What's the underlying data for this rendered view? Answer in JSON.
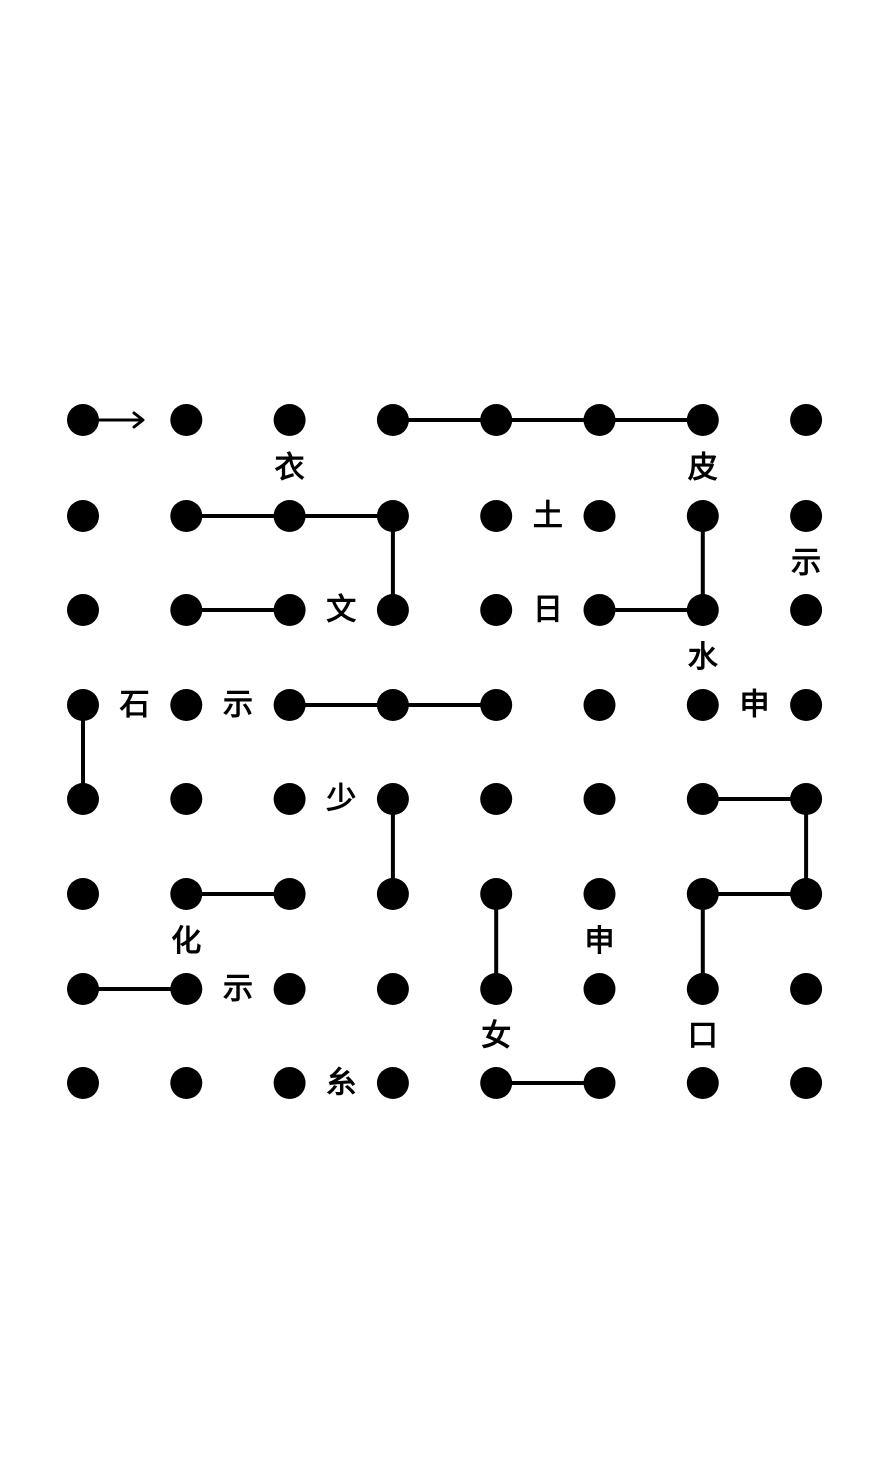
{
  "puzzle": {
    "type": "dot-grid maze",
    "columns": 8,
    "rows": 8,
    "colors": {
      "background": "#ffffff",
      "ink": "#000000"
    },
    "start_marker": "arrow-right",
    "segments": [
      {
        "from": [
          3,
          0
        ],
        "to": [
          6,
          0
        ]
      },
      {
        "from": [
          1,
          1
        ],
        "to": [
          3,
          1
        ]
      },
      {
        "from": [
          3,
          1
        ],
        "to": [
          3,
          2
        ]
      },
      {
        "from": [
          6,
          1
        ],
        "to": [
          6,
          2
        ]
      },
      {
        "from": [
          1,
          2
        ],
        "to": [
          2,
          2
        ]
      },
      {
        "from": [
          5,
          2
        ],
        "to": [
          6,
          2
        ]
      },
      {
        "from": [
          2,
          3
        ],
        "to": [
          4,
          3
        ]
      },
      {
        "from": [
          0,
          3
        ],
        "to": [
          0,
          4
        ]
      },
      {
        "from": [
          6,
          4
        ],
        "to": [
          7,
          4
        ]
      },
      {
        "from": [
          7,
          4
        ],
        "to": [
          7,
          5
        ]
      },
      {
        "from": [
          3,
          4
        ],
        "to": [
          3,
          5
        ]
      },
      {
        "from": [
          1,
          5
        ],
        "to": [
          2,
          5
        ]
      },
      {
        "from": [
          6,
          5
        ],
        "to": [
          7,
          5
        ]
      },
      {
        "from": [
          4,
          5
        ],
        "to": [
          4,
          6
        ]
      },
      {
        "from": [
          6,
          5
        ],
        "to": [
          6,
          6
        ]
      },
      {
        "from": [
          0,
          6
        ],
        "to": [
          1,
          6
        ]
      },
      {
        "from": [
          4,
          7
        ],
        "to": [
          5,
          7
        ]
      }
    ],
    "glyphs": [
      {
        "text": "衣",
        "cell": [
          2,
          0.5
        ]
      },
      {
        "text": "皮",
        "cell": [
          6,
          0.5
        ]
      },
      {
        "text": "土",
        "cell": [
          4.5,
          1
        ]
      },
      {
        "text": "示",
        "cell": [
          7,
          1.5
        ]
      },
      {
        "text": "文",
        "cell": [
          2.5,
          2
        ]
      },
      {
        "text": "日",
        "cell": [
          4.5,
          2
        ]
      },
      {
        "text": "水",
        "cell": [
          6,
          2.5
        ]
      },
      {
        "text": "石",
        "cell": [
          0.5,
          3
        ]
      },
      {
        "text": "示",
        "cell": [
          1.5,
          3
        ]
      },
      {
        "text": "申",
        "cell": [
          6.5,
          3
        ]
      },
      {
        "text": "少",
        "cell": [
          2.5,
          4
        ]
      },
      {
        "text": "化",
        "cell": [
          1,
          5.5
        ]
      },
      {
        "text": "申",
        "cell": [
          5,
          5.5
        ]
      },
      {
        "text": "示",
        "cell": [
          1.5,
          6
        ]
      },
      {
        "text": "女",
        "cell": [
          4,
          6.5
        ]
      },
      {
        "text": "口",
        "cell": [
          6,
          6.5
        ]
      },
      {
        "text": "糸",
        "cell": [
          2.5,
          7
        ]
      }
    ]
  }
}
